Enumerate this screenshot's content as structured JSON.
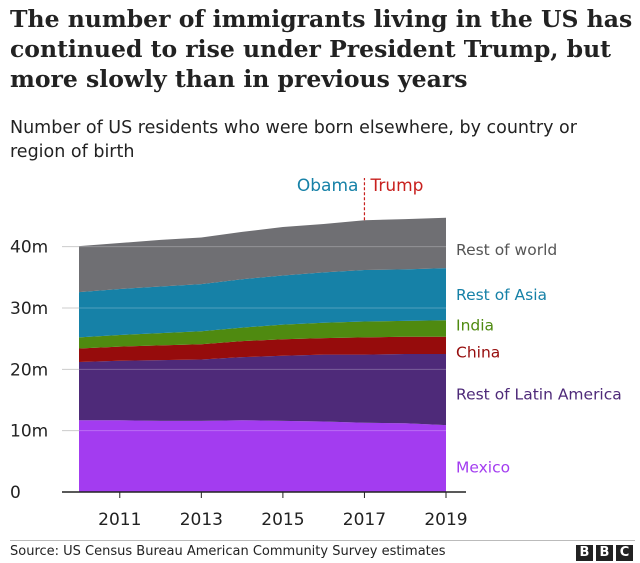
{
  "header": {
    "title": "The number of immigrants living in the US has continued to rise under President Trump, but more slowly than in previous years",
    "subtitle": "Number of US residents who were born elsewhere, by country or region of birth"
  },
  "footer": {
    "source": "Source: US Census Bureau American Community Survey estimates",
    "logo": [
      "B",
      "B",
      "C"
    ]
  },
  "chart_data": {
    "type": "area",
    "stacked": true,
    "x": [
      2010,
      2011,
      2012,
      2013,
      2014,
      2015,
      2016,
      2017,
      2018,
      2019
    ],
    "x_ticks": [
      "2011",
      "2013",
      "2015",
      "2017",
      "2019"
    ],
    "y_ticks": [
      "0",
      "10m",
      "20m",
      "30m",
      "40m"
    ],
    "ylim": [
      0,
      45
    ],
    "series": [
      {
        "name": "Mexico",
        "color": "#a33cf0",
        "values": [
          11.7,
          11.7,
          11.6,
          11.6,
          11.7,
          11.6,
          11.5,
          11.3,
          11.2,
          10.9
        ]
      },
      {
        "name": "Rest of Latin America",
        "color": "#4e2a79",
        "values": [
          9.5,
          9.7,
          9.9,
          10.0,
          10.3,
          10.6,
          10.9,
          11.1,
          11.3,
          11.6
        ]
      },
      {
        "name": "China",
        "color": "#960c0c",
        "values": [
          2.2,
          2.3,
          2.4,
          2.5,
          2.6,
          2.7,
          2.7,
          2.8,
          2.8,
          2.8
        ]
      },
      {
        "name": "India",
        "color": "#4f8a10",
        "values": [
          1.8,
          1.9,
          2.0,
          2.1,
          2.2,
          2.4,
          2.5,
          2.6,
          2.6,
          2.7
        ]
      },
      {
        "name": "Rest of Asia",
        "color": "#1681a7",
        "values": [
          7.4,
          7.5,
          7.6,
          7.7,
          7.9,
          8.0,
          8.2,
          8.4,
          8.4,
          8.5
        ]
      },
      {
        "name": "Rest of world",
        "color": "#6f6f73",
        "values": [
          7.5,
          7.5,
          7.6,
          7.6,
          7.7,
          7.9,
          7.9,
          8.1,
          8.2,
          8.2
        ]
      }
    ],
    "annotations": [
      {
        "label": "Obama",
        "color": "#1681a7"
      },
      {
        "label": "Trump",
        "color": "#c8201e"
      }
    ],
    "divider_year": 2017,
    "label_color": "#555555"
  }
}
